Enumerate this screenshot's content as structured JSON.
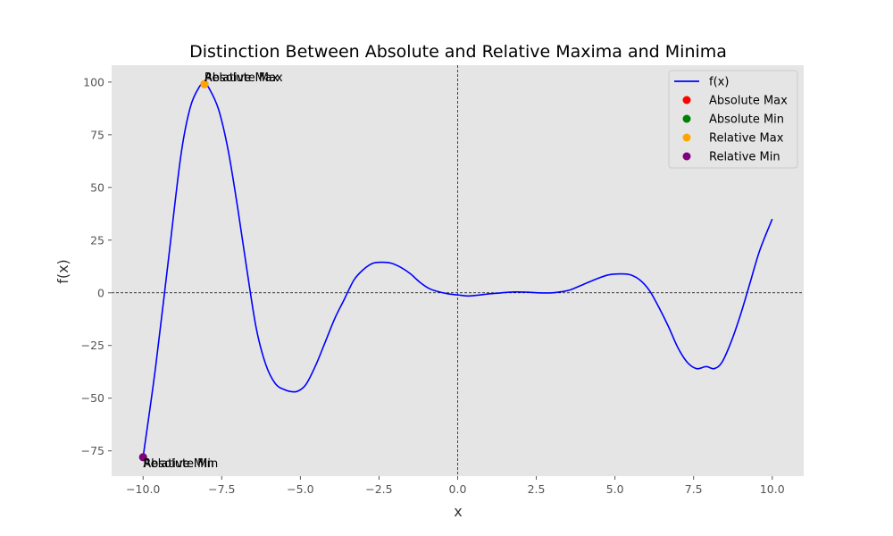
{
  "chart_data": {
    "type": "line",
    "title": "Distinction Between Absolute and Relative Maxima and Minima",
    "xlabel": "x",
    "ylabel": "f(x)",
    "xlim": [
      -11,
      11
    ],
    "ylim": [
      -87,
      108
    ],
    "xticks": [
      -10.0,
      -7.5,
      -5.0,
      -2.5,
      0.0,
      2.5,
      5.0,
      7.5,
      10.0
    ],
    "xtick_labels": [
      "−10.0",
      "−7.5",
      "−5.0",
      "−2.5",
      "0.0",
      "2.5",
      "5.0",
      "7.5",
      "10.0"
    ],
    "yticks": [
      -75,
      -50,
      -25,
      0,
      25,
      50,
      75,
      100
    ],
    "ytick_labels": [
      "−75",
      "−50",
      "−25",
      "0",
      "25",
      "50",
      "75",
      "100"
    ],
    "grid": false,
    "background_color": "#e5e5e5",
    "reference_lines": {
      "horizontal_y": 0,
      "vertical_x": 0
    },
    "series": [
      {
        "name": "f(x)",
        "color": "#0000ff",
        "x": [
          -10.0,
          -9.6,
          -9.2,
          -8.8,
          -8.5,
          -8.2,
          -8.05,
          -7.9,
          -7.6,
          -7.3,
          -7.0,
          -6.7,
          -6.4,
          -6.1,
          -5.8,
          -5.5,
          -5.2,
          -5.0,
          -4.8,
          -4.5,
          -4.2,
          -3.9,
          -3.6,
          -3.3,
          -3.0,
          -2.7,
          -2.4,
          -2.1,
          -1.8,
          -1.5,
          -1.2,
          -0.9,
          -0.6,
          -0.3,
          0.0,
          0.3,
          0.6,
          1.0,
          1.4,
          1.8,
          2.2,
          2.6,
          3.0,
          3.3,
          3.6,
          4.0,
          4.4,
          4.8,
          5.2,
          5.5,
          5.8,
          6.1,
          6.4,
          6.7,
          7.0,
          7.3,
          7.6,
          7.9,
          8.15,
          8.4,
          8.7,
          9.0,
          9.3,
          9.6,
          10.0
        ],
        "y": [
          -78,
          -35,
          15,
          65,
          88,
          98,
          99,
          97,
          87,
          68,
          41,
          11,
          -17,
          -34,
          -43,
          -46,
          -47,
          -46,
          -43,
          -34,
          -23,
          -12,
          -3,
          6,
          11,
          14,
          14.5,
          14,
          12,
          9,
          5,
          2,
          0.5,
          -0.5,
          -1,
          -1.5,
          -1.2,
          -0.5,
          0,
          0.4,
          0.3,
          0,
          0,
          0.5,
          1.5,
          4,
          6.5,
          8.5,
          9,
          8.5,
          6,
          1,
          -7,
          -16,
          -26,
          -33,
          -36,
          -35,
          -36,
          -33,
          -23,
          -10,
          5,
          20,
          35
        ]
      }
    ],
    "markers": [
      {
        "name": "Absolute Max",
        "color": "#ff0000",
        "x": -8.05,
        "y": 99
      },
      {
        "name": "Absolute Min",
        "color": "#008000",
        "x": -10.0,
        "y": -78
      },
      {
        "name": "Relative Max",
        "color": "#ffa500",
        "x": -8.05,
        "y": 99
      },
      {
        "name": "Relative Min",
        "color": "#800080",
        "x": -10.0,
        "y": -78
      }
    ],
    "annotations": [
      {
        "text": "Absolute Max",
        "x": -8.05,
        "y": 99
      },
      {
        "text": "Relative Max",
        "x": -8.05,
        "y": 99
      },
      {
        "text": "Absolute Min",
        "x": -10.0,
        "y": -78
      },
      {
        "text": "Relative Min",
        "x": -10.0,
        "y": -78
      }
    ],
    "legend": {
      "placement": "top-right",
      "entries": [
        {
          "label": "f(x)",
          "kind": "line",
          "color": "#0000ff"
        },
        {
          "label": "Absolute Max",
          "kind": "marker",
          "color": "#ff0000"
        },
        {
          "label": "Absolute Min",
          "kind": "marker",
          "color": "#008000"
        },
        {
          "label": "Relative Max",
          "kind": "marker",
          "color": "#ffa500"
        },
        {
          "label": "Relative Min",
          "kind": "marker",
          "color": "#800080"
        }
      ]
    }
  }
}
